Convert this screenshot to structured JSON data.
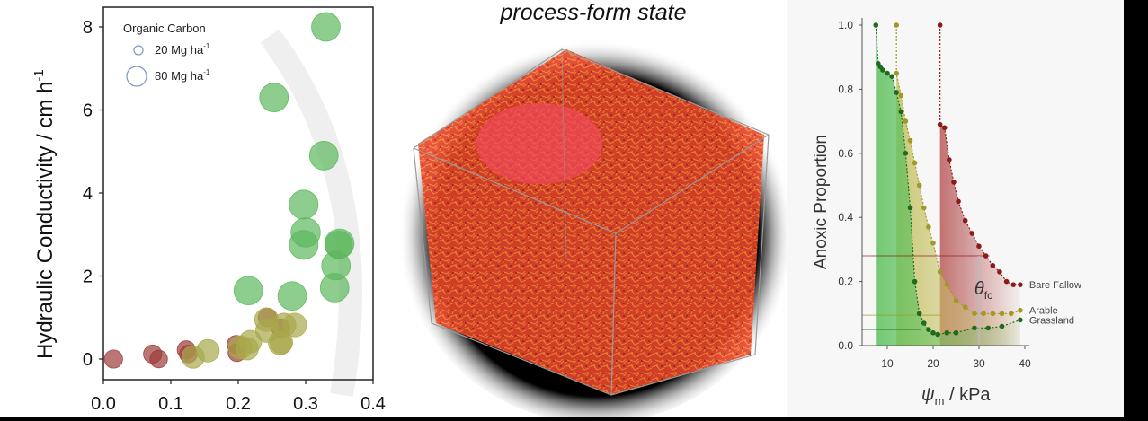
{
  "chart_data": [
    {
      "type": "scatter",
      "ylabel": "Hydraulic Conductivity / cm h",
      "ylabel_sup": "-1",
      "xlim": [
        0.0,
        0.4
      ],
      "ylim": [
        0,
        8
      ],
      "xticks": [
        "0.0",
        "0.1",
        "0.2",
        "0.3",
        "0.4"
      ],
      "yticks": [
        "0",
        "2",
        "4",
        "6",
        "8"
      ],
      "legend": {
        "title": "Organic Carbon",
        "items": [
          {
            "label": "20 Mg ha",
            "sup": "-1",
            "size": 20
          },
          {
            "label": "80 Mg ha",
            "sup": "-1",
            "size": 80
          }
        ]
      },
      "colors": {
        "bare": "#9c3a3a",
        "arable": "#a8a84a",
        "grass": "#5cb85c"
      },
      "series": [
        {
          "group": "bare",
          "points": [
            {
              "x": 0.015,
              "y": 0.0,
              "oc": 18
            },
            {
              "x": 0.073,
              "y": 0.12,
              "oc": 18
            },
            {
              "x": 0.082,
              "y": 0.0,
              "oc": 16
            },
            {
              "x": 0.123,
              "y": 0.22,
              "oc": 18
            },
            {
              "x": 0.126,
              "y": 0.12,
              "oc": 16
            },
            {
              "x": 0.197,
              "y": 0.35,
              "oc": 18
            },
            {
              "x": 0.198,
              "y": 0.15,
              "oc": 16
            },
            {
              "x": 0.263,
              "y": 0.75,
              "oc": 18
            },
            {
              "x": 0.243,
              "y": 1.0,
              "oc": 18
            }
          ]
        },
        {
          "group": "arable",
          "points": [
            {
              "x": 0.133,
              "y": 0.05,
              "oc": 35
            },
            {
              "x": 0.155,
              "y": 0.2,
              "oc": 35
            },
            {
              "x": 0.203,
              "y": 0.28,
              "oc": 38
            },
            {
              "x": 0.218,
              "y": 0.42,
              "oc": 35
            },
            {
              "x": 0.213,
              "y": 0.25,
              "oc": 35
            },
            {
              "x": 0.242,
              "y": 0.95,
              "oc": 40
            },
            {
              "x": 0.243,
              "y": 0.68,
              "oc": 38
            },
            {
              "x": 0.262,
              "y": 0.38,
              "oc": 38
            },
            {
              "x": 0.268,
              "y": 0.82,
              "oc": 40
            },
            {
              "x": 0.284,
              "y": 0.82,
              "oc": 40
            },
            {
              "x": 0.264,
              "y": 0.4,
              "oc": 35
            }
          ]
        },
        {
          "group": "grass",
          "points": [
            {
              "x": 0.215,
              "y": 1.65,
              "oc": 68
            },
            {
              "x": 0.253,
              "y": 6.3,
              "oc": 68
            },
            {
              "x": 0.28,
              "y": 1.52,
              "oc": 68
            },
            {
              "x": 0.297,
              "y": 3.72,
              "oc": 70
            },
            {
              "x": 0.3,
              "y": 3.05,
              "oc": 72
            },
            {
              "x": 0.297,
              "y": 2.75,
              "oc": 70
            },
            {
              "x": 0.327,
              "y": 4.9,
              "oc": 68
            },
            {
              "x": 0.33,
              "y": 8.0,
              "oc": 68
            },
            {
              "x": 0.343,
              "y": 1.72,
              "oc": 68
            },
            {
              "x": 0.345,
              "y": 2.25,
              "oc": 68
            },
            {
              "x": 0.35,
              "y": 2.78,
              "oc": 72
            },
            {
              "x": 0.349,
              "y": 2.75,
              "oc": 60
            }
          ]
        }
      ]
    },
    {
      "type": "line",
      "ylabel": "Anoxic Proportion",
      "xlabel_symbol": "ψ",
      "xlabel_sub": "m",
      "xlabel_rest": " / kPa",
      "xlim": [
        5,
        42
      ],
      "ylim": [
        0,
        1.0
      ],
      "xticks": [
        "10",
        "20",
        "30",
        "40"
      ],
      "yticks": [
        "0.0",
        "0.2",
        "0.4",
        "0.6",
        "0.8",
        "1.0"
      ],
      "theta_symbol": "θ",
      "theta_sub": "fc",
      "series": [
        {
          "name": "Bare Fallow",
          "color": "#8b1a1a",
          "fill": "#b85a5a",
          "theta_x": 21.5,
          "fc_y": 0.28,
          "x": [
            21.5,
            21.5,
            22.5,
            23.5,
            24.5,
            25.5,
            27,
            28.5,
            30,
            31.5,
            33,
            34.5,
            36,
            37.5,
            39
          ],
          "y": [
            1.0,
            0.69,
            0.68,
            0.58,
            0.51,
            0.45,
            0.39,
            0.35,
            0.31,
            0.28,
            0.25,
            0.23,
            0.2,
            0.19,
            0.19
          ]
        },
        {
          "name": "Arable",
          "color": "#a09a25",
          "fill": "#c4c060",
          "theta_x": 12,
          "fc_y": 0.095,
          "x": [
            12,
            12,
            13,
            14,
            15,
            16,
            17,
            18,
            19,
            20,
            21.5,
            23,
            25,
            27,
            29,
            31,
            33,
            35,
            37,
            39
          ],
          "y": [
            1.0,
            0.85,
            0.78,
            0.7,
            0.64,
            0.57,
            0.5,
            0.43,
            0.37,
            0.32,
            0.23,
            0.19,
            0.14,
            0.12,
            0.1,
            0.1,
            0.1,
            0.1,
            0.1,
            0.11
          ]
        },
        {
          "name": "Grassland",
          "color": "#1e6b1e",
          "fill": "#5cc05c",
          "theta_x": 7.5,
          "fc_y": 0.05,
          "x": [
            7.5,
            8,
            8.5,
            9,
            10,
            11,
            12,
            13,
            14,
            15,
            16,
            17,
            18,
            19,
            20,
            21,
            23,
            25,
            29,
            32,
            35,
            39
          ],
          "y": [
            1.0,
            0.88,
            0.87,
            0.86,
            0.85,
            0.84,
            0.79,
            0.73,
            0.6,
            0.43,
            0.2,
            0.1,
            0.07,
            0.05,
            0.04,
            0.035,
            0.04,
            0.04,
            0.055,
            0.055,
            0.06,
            0.08
          ]
        }
      ]
    }
  ],
  "mid": {
    "title": "process-form state"
  }
}
